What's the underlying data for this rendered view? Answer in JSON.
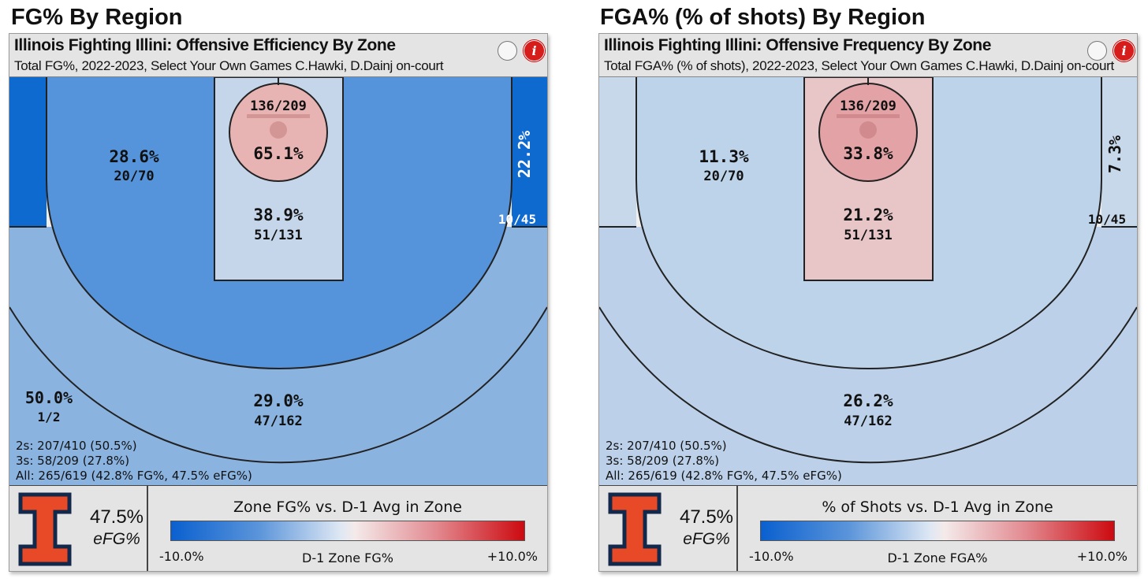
{
  "chart_data": [
    {
      "type": "heatmap",
      "figure_title": "FG% By Region",
      "title": "Illinois Fighting Illini: Offensive Efficiency By Zone",
      "subtitle": "Total FG%, 2022-2023, Select Your Own Games C.Hawki, D.Dainj on-court",
      "zones": [
        {
          "zone": "rim",
          "pct": "65.1%",
          "made_att": "136/209",
          "color": "#e8b3b3"
        },
        {
          "zone": "paint",
          "pct": "38.9%",
          "made_att": "51/131",
          "color": "#c5d6ea"
        },
        {
          "zone": "left-midrange",
          "pct": "28.6%",
          "made_att": "20/70",
          "color": "#5593da"
        },
        {
          "zone": "right-corner-three",
          "pct": "22.2%",
          "made_att": "10/45",
          "color": "#0f6ad0"
        },
        {
          "zone": "left-corner-three",
          "pct": "",
          "made_att": "",
          "color": "#0f6ad0"
        },
        {
          "zone": "above-break-three",
          "pct": "29.0%",
          "made_att": "47/162",
          "color": "#8ab3e0"
        },
        {
          "zone": "long-range",
          "pct": "50.0%",
          "made_att": "1/2",
          "color": "#efefef"
        }
      ],
      "summary": [
        "2s: 207/410 (50.5%)",
        "3s: 58/209 (27.8%)",
        "All: 265/619 (42.8% FG%, 47.5% eFG%)"
      ],
      "efg_value": "47.5%",
      "efg_label": "eFG%",
      "legend": {
        "title": "Zone FG% vs. D-1 Avg in Zone",
        "min": "-10.0%",
        "max": "+10.0%",
        "axis_label": "D-1 Zone FG%"
      }
    },
    {
      "type": "heatmap",
      "figure_title": "FGA% (% of shots) By Region",
      "title": "Illinois Fighting Illini: Offensive Frequency By Zone",
      "subtitle": "Total FGA% (% of shots), 2022-2023, Select Your Own Games C.Hawki, D.Dainj on-court",
      "zones": [
        {
          "zone": "rim",
          "pct": "33.8%",
          "made_att": "136/209",
          "color": "#e3a2a6"
        },
        {
          "zone": "paint",
          "pct": "21.2%",
          "made_att": "51/131",
          "color": "#e8c6c8"
        },
        {
          "zone": "left-midrange",
          "pct": "11.3%",
          "made_att": "20/70",
          "color": "#bdd3e9"
        },
        {
          "zone": "right-corner-three",
          "pct": "7.3%",
          "made_att": "10/45",
          "color": "#c6d8ea"
        },
        {
          "zone": "left-corner-three",
          "pct": "",
          "made_att": "",
          "color": "#c6d8ea"
        },
        {
          "zone": "above-break-three",
          "pct": "26.2%",
          "made_att": "47/162",
          "color": "#bcd1e9"
        },
        {
          "zone": "long-range",
          "pct": "",
          "made_att": "",
          "color": "#efefef"
        }
      ],
      "summary": [
        "2s: 207/410 (50.5%)",
        "3s: 58/209 (27.8%)",
        "All: 265/619 (42.8% FG%, 47.5% eFG%)"
      ],
      "efg_value": "47.5%",
      "efg_label": "eFG%",
      "legend": {
        "title": "% of Shots vs. D-1 Avg in Zone",
        "min": "-10.0%",
        "max": "+10.0%",
        "axis_label": "D-1 Zone FGA%"
      }
    }
  ]
}
